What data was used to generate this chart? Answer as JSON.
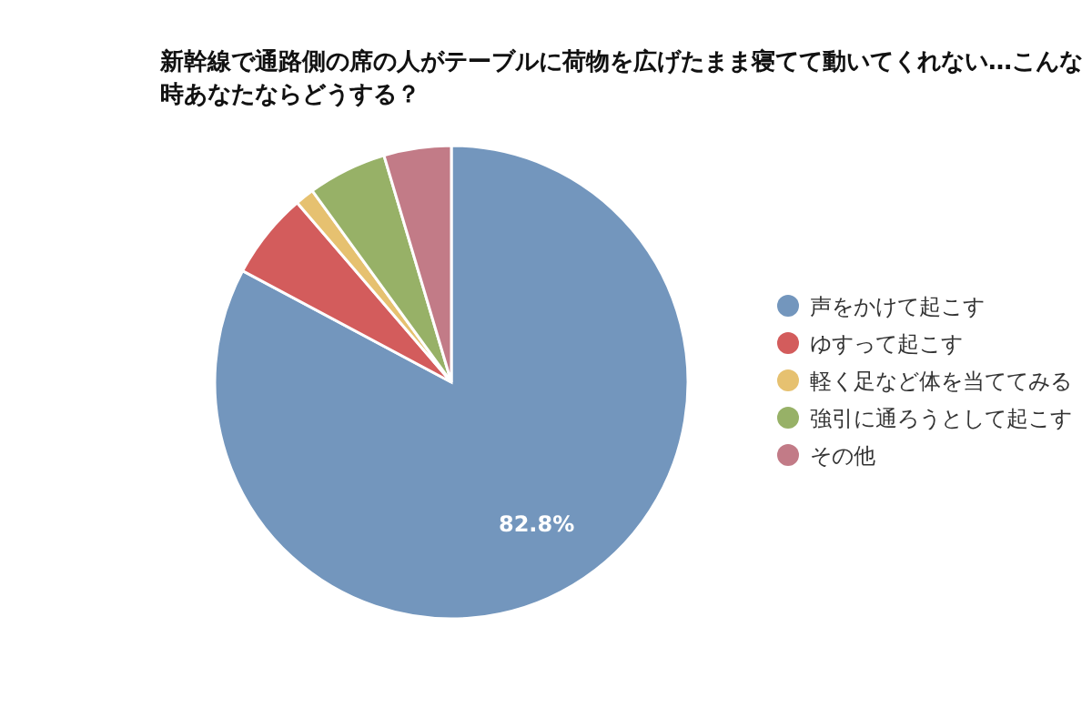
{
  "chart_data": {
    "type": "pie",
    "title": "新幹線で通路側の席の人がテーブルに荷物を広げたまま寝てて動いてくれない…こんな時あなたならどうする？",
    "categories": [
      "声をかけて起こす",
      "ゆすって起こす",
      "軽く足など体を当ててみる",
      "強引に通ろうとして起こす",
      "その他"
    ],
    "values": [
      82.8,
      5.9,
      1.3,
      5.4,
      4.6
    ],
    "value_labels": [
      "82.8%",
      null,
      null,
      null,
      null
    ],
    "colors": [
      "#7396bd",
      "#d35c5c",
      "#e6c170",
      "#97b167",
      "#c27b87"
    ],
    "legend": "right"
  }
}
